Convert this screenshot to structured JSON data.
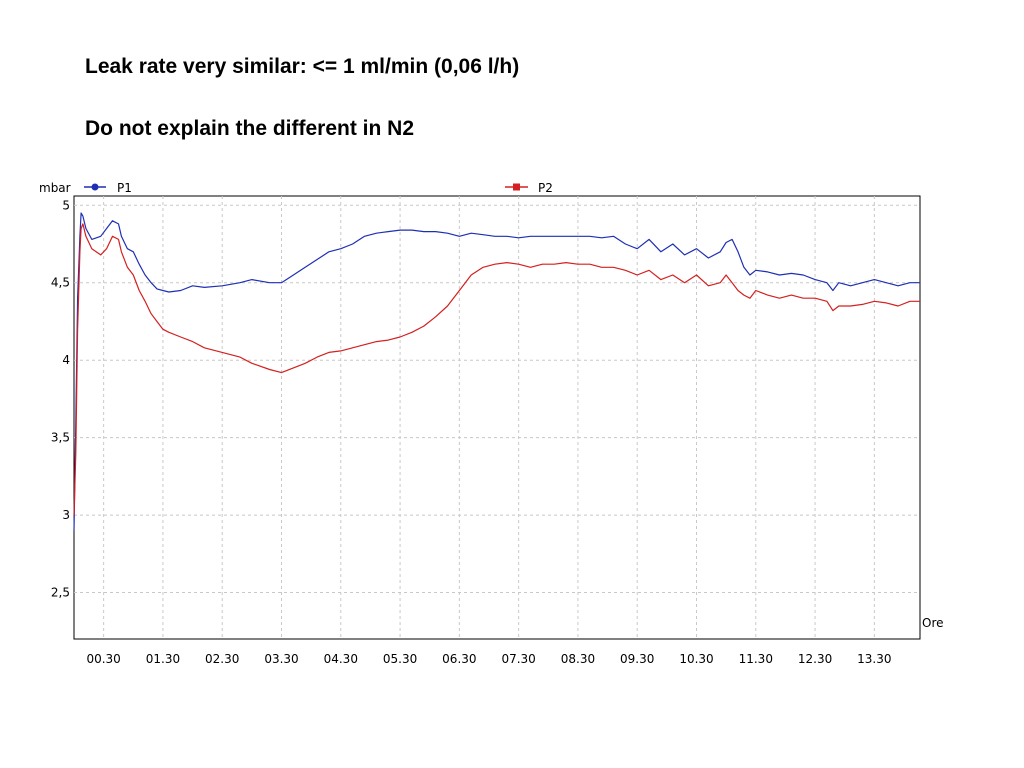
{
  "slide": {
    "line1": "Leak rate very similar: <= 1 ml/min (0,06 l/h)",
    "line2": "Do not explain the different in N2"
  },
  "chart_data": {
    "type": "line",
    "ylabel": "mbar",
    "xlabel": "Ore",
    "ylim": [
      2.2,
      5.06
    ],
    "xlim": [
      0,
      14.27
    ],
    "yticks": [
      {
        "value": 5,
        "label": "5"
      },
      {
        "value": 4.5,
        "label": "4,5"
      },
      {
        "value": 4,
        "label": "4"
      },
      {
        "value": 3.5,
        "label": "3,5"
      },
      {
        "value": 3,
        "label": "3"
      },
      {
        "value": 2.5,
        "label": "2,5"
      }
    ],
    "xticks": [
      {
        "value": 0.5,
        "label": "00.30"
      },
      {
        "value": 1.5,
        "label": "01.30"
      },
      {
        "value": 2.5,
        "label": "02.30"
      },
      {
        "value": 3.5,
        "label": "03.30"
      },
      {
        "value": 4.5,
        "label": "04.30"
      },
      {
        "value": 5.5,
        "label": "05.30"
      },
      {
        "value": 6.5,
        "label": "06.30"
      },
      {
        "value": 7.5,
        "label": "07.30"
      },
      {
        "value": 8.5,
        "label": "08.30"
      },
      {
        "value": 9.5,
        "label": "09.30"
      },
      {
        "value": 10.5,
        "label": "10.30"
      },
      {
        "value": 11.5,
        "label": "11.30"
      },
      {
        "value": 12.5,
        "label": "12.30"
      },
      {
        "value": 13.5,
        "label": "13.30"
      }
    ],
    "grid": true,
    "legend_position": "top",
    "series": [
      {
        "name": "P1",
        "color": "#1f2fb4",
        "x": [
          0,
          0.03,
          0.06,
          0.1,
          0.12,
          0.15,
          0.2,
          0.3,
          0.45,
          0.55,
          0.65,
          0.75,
          0.8,
          0.9,
          1.0,
          1.1,
          1.2,
          1.3,
          1.4,
          1.5,
          1.6,
          1.8,
          2.0,
          2.2,
          2.5,
          2.8,
          3.0,
          3.3,
          3.5,
          3.7,
          3.9,
          4.1,
          4.3,
          4.5,
          4.7,
          4.9,
          5.1,
          5.3,
          5.5,
          5.7,
          5.9,
          6.1,
          6.3,
          6.5,
          6.7,
          6.9,
          7.1,
          7.3,
          7.5,
          7.7,
          7.9,
          8.1,
          8.3,
          8.5,
          8.7,
          8.9,
          9.1,
          9.3,
          9.5,
          9.7,
          9.9,
          10.1,
          10.3,
          10.5,
          10.7,
          10.9,
          11.0,
          11.1,
          11.2,
          11.3,
          11.4,
          11.5,
          11.7,
          11.9,
          12.1,
          12.3,
          12.5,
          12.7,
          12.8,
          12.9,
          13.1,
          13.3,
          13.5,
          13.7,
          13.9,
          14.1,
          14.27
        ],
        "y": [
          2.9,
          3.6,
          4.4,
          4.8,
          4.95,
          4.93,
          4.85,
          4.78,
          4.8,
          4.85,
          4.9,
          4.88,
          4.8,
          4.72,
          4.7,
          4.62,
          4.55,
          4.5,
          4.46,
          4.45,
          4.44,
          4.45,
          4.48,
          4.47,
          4.48,
          4.5,
          4.52,
          4.5,
          4.5,
          4.55,
          4.6,
          4.65,
          4.7,
          4.72,
          4.75,
          4.8,
          4.82,
          4.83,
          4.84,
          4.84,
          4.83,
          4.83,
          4.82,
          4.8,
          4.82,
          4.81,
          4.8,
          4.8,
          4.79,
          4.8,
          4.8,
          4.8,
          4.8,
          4.8,
          4.8,
          4.79,
          4.8,
          4.75,
          4.72,
          4.78,
          4.7,
          4.75,
          4.68,
          4.72,
          4.66,
          4.7,
          4.76,
          4.78,
          4.7,
          4.6,
          4.55,
          4.58,
          4.57,
          4.55,
          4.56,
          4.55,
          4.52,
          4.5,
          4.45,
          4.5,
          4.48,
          4.5,
          4.52,
          4.5,
          4.48,
          4.5,
          4.5
        ]
      },
      {
        "name": "P2",
        "color": "#d42020",
        "x": [
          0,
          0.03,
          0.06,
          0.1,
          0.12,
          0.15,
          0.2,
          0.3,
          0.45,
          0.55,
          0.65,
          0.75,
          0.8,
          0.9,
          1.0,
          1.1,
          1.2,
          1.3,
          1.4,
          1.5,
          1.6,
          1.8,
          2.0,
          2.2,
          2.5,
          2.8,
          3.0,
          3.3,
          3.5,
          3.7,
          3.9,
          4.1,
          4.3,
          4.5,
          4.7,
          4.9,
          5.1,
          5.3,
          5.5,
          5.7,
          5.9,
          6.1,
          6.3,
          6.5,
          6.7,
          6.9,
          7.1,
          7.3,
          7.5,
          7.7,
          7.9,
          8.1,
          8.3,
          8.5,
          8.7,
          8.9,
          9.1,
          9.3,
          9.5,
          9.7,
          9.9,
          10.1,
          10.3,
          10.5,
          10.7,
          10.9,
          11.0,
          11.1,
          11.2,
          11.3,
          11.4,
          11.5,
          11.7,
          11.9,
          12.1,
          12.3,
          12.5,
          12.7,
          12.8,
          12.9,
          13.1,
          13.3,
          13.5,
          13.7,
          13.9,
          14.1,
          14.27
        ],
        "y": [
          3.0,
          3.4,
          4.2,
          4.7,
          4.85,
          4.88,
          4.8,
          4.72,
          4.68,
          4.72,
          4.8,
          4.78,
          4.7,
          4.6,
          4.55,
          4.45,
          4.38,
          4.3,
          4.25,
          4.2,
          4.18,
          4.15,
          4.12,
          4.08,
          4.05,
          4.02,
          3.98,
          3.94,
          3.92,
          3.95,
          3.98,
          4.02,
          4.05,
          4.06,
          4.08,
          4.1,
          4.12,
          4.13,
          4.15,
          4.18,
          4.22,
          4.28,
          4.35,
          4.45,
          4.55,
          4.6,
          4.62,
          4.63,
          4.62,
          4.6,
          4.62,
          4.62,
          4.63,
          4.62,
          4.62,
          4.6,
          4.6,
          4.58,
          4.55,
          4.58,
          4.52,
          4.55,
          4.5,
          4.55,
          4.48,
          4.5,
          4.55,
          4.5,
          4.45,
          4.42,
          4.4,
          4.45,
          4.42,
          4.4,
          4.42,
          4.4,
          4.4,
          4.38,
          4.32,
          4.35,
          4.35,
          4.36,
          4.38,
          4.37,
          4.35,
          4.38,
          4.38
        ]
      }
    ]
  }
}
